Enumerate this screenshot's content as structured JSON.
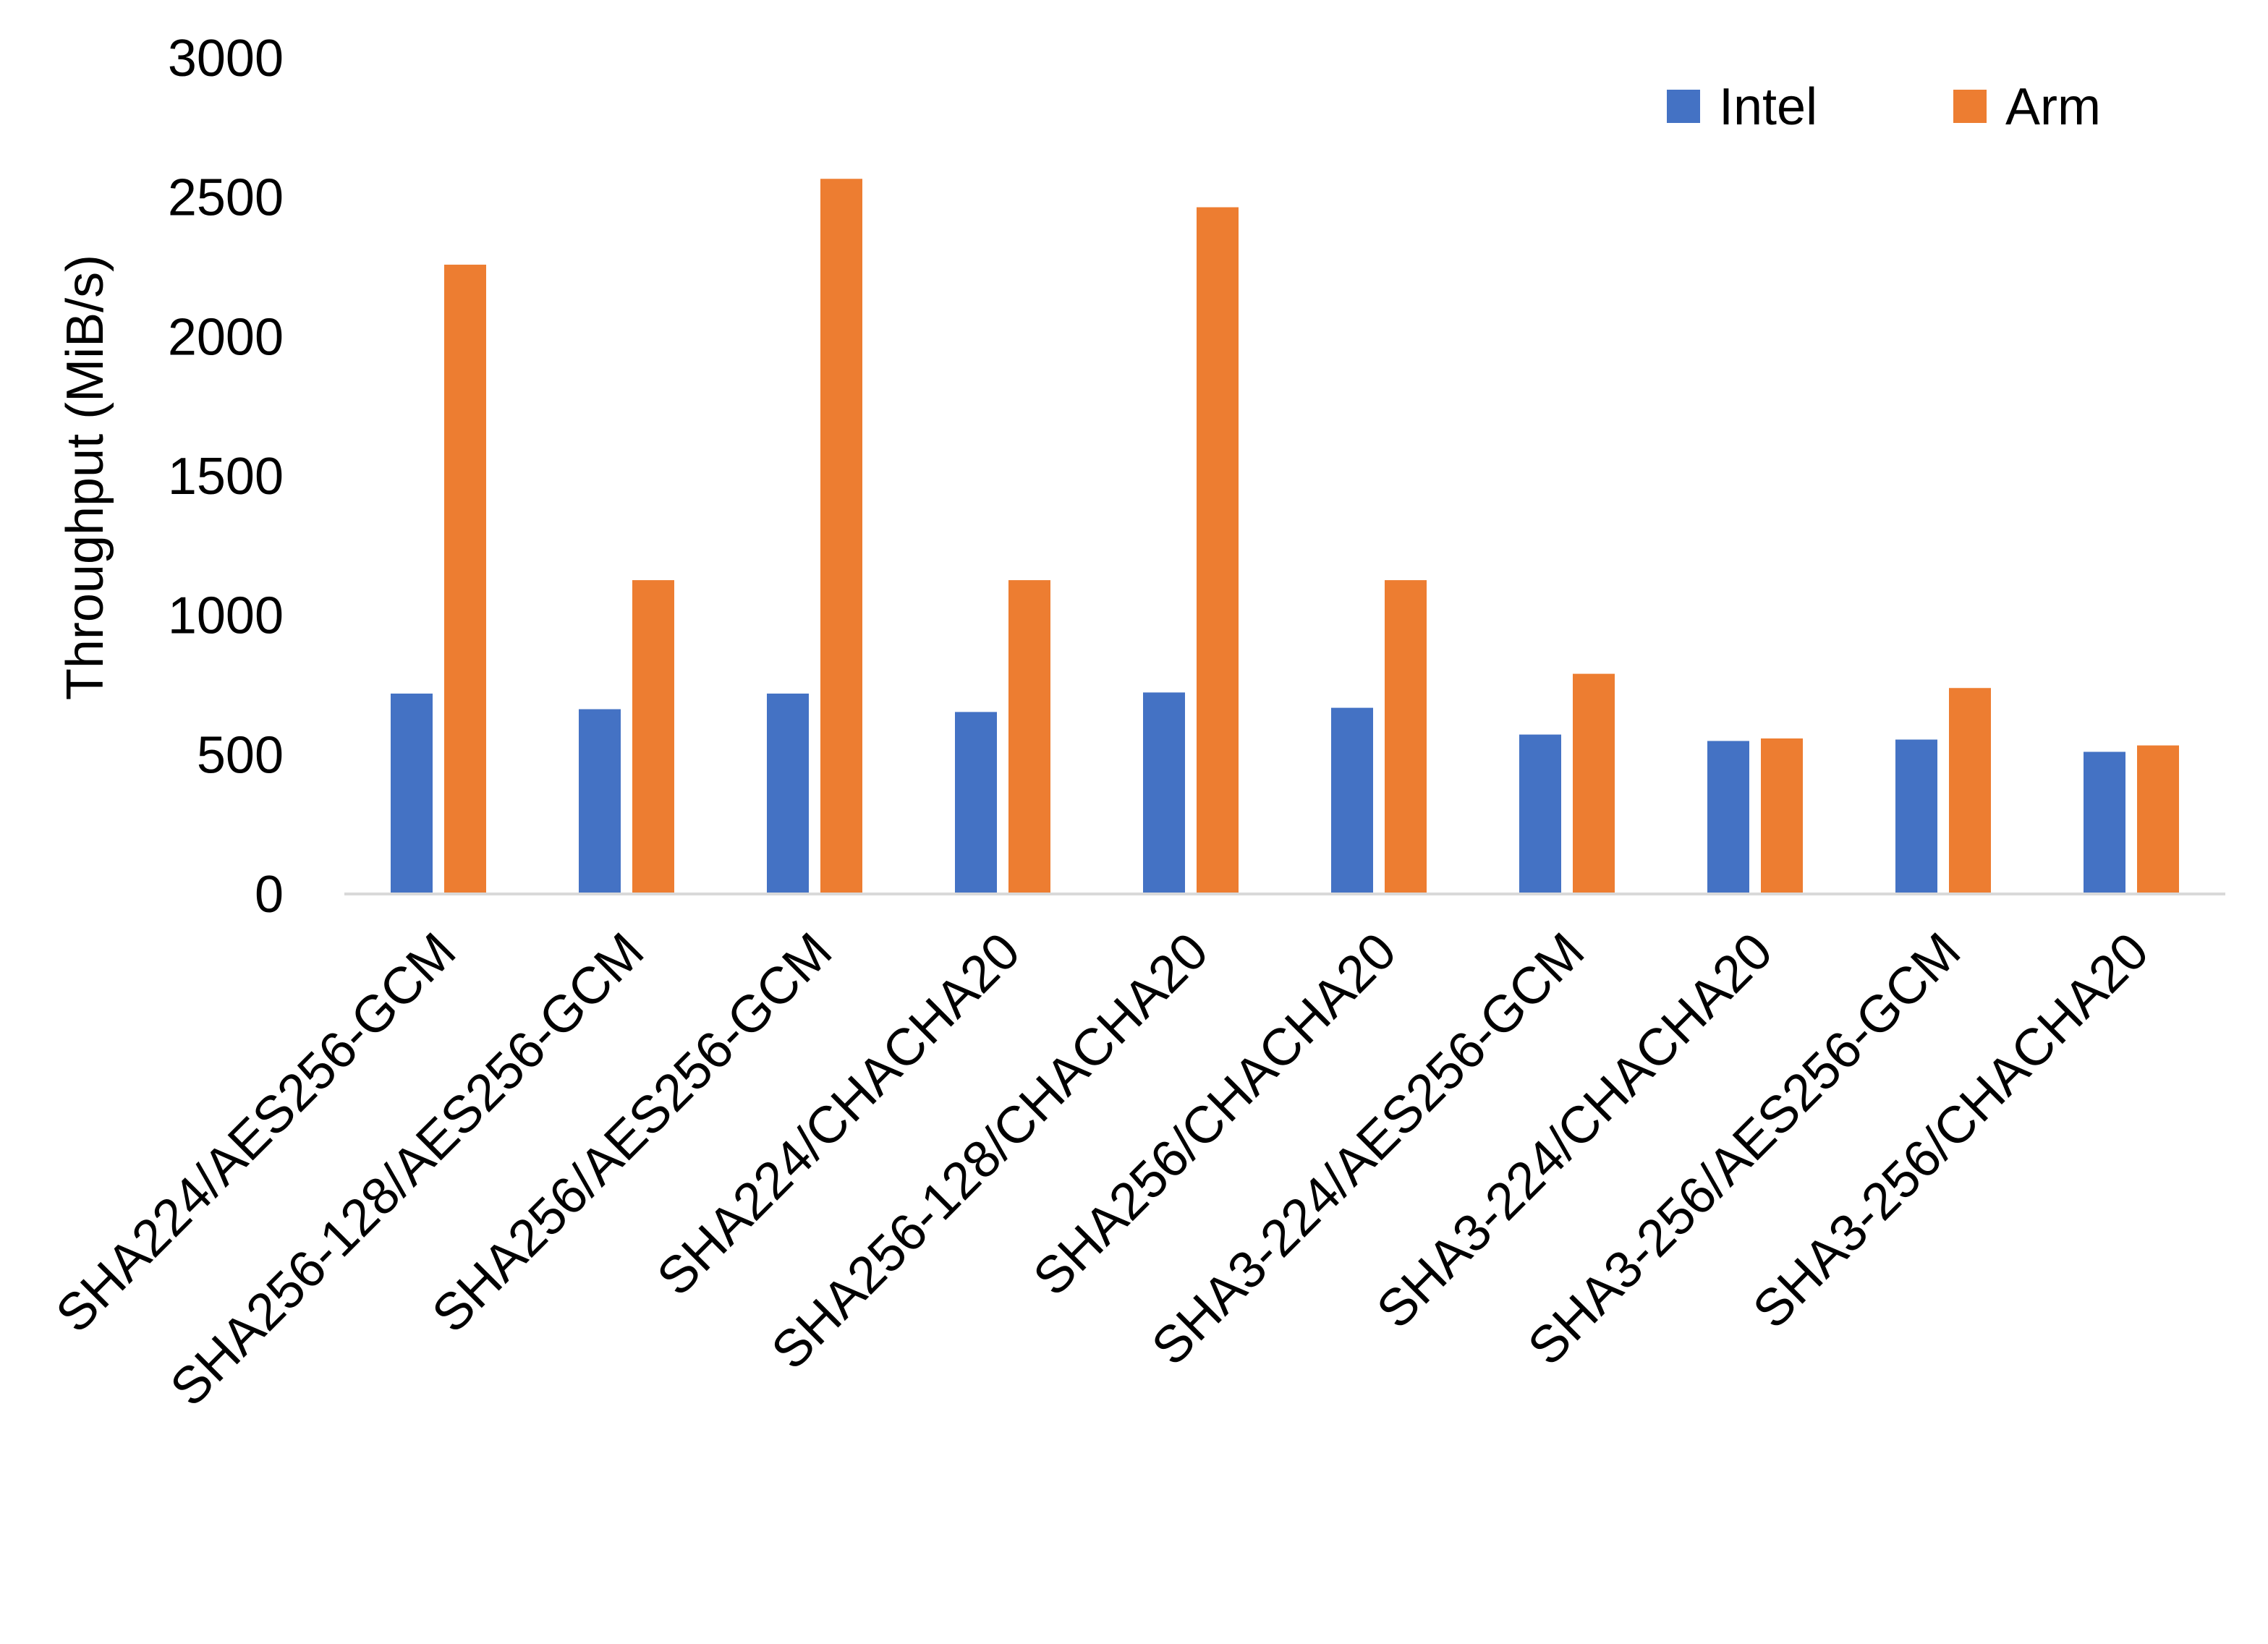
{
  "chart_data": {
    "type": "bar",
    "title": "",
    "xlabel": "",
    "ylabel": "Throughput (MiB/s)",
    "ylim": [
      0,
      3000
    ],
    "yticks": [
      "0",
      "500",
      "1000",
      "1500",
      "2000",
      "2500",
      "3000"
    ],
    "grid": false,
    "legend_position": "top-right",
    "categories": [
      "SHA224/AES256-GCM",
      "SHA256-128/AES256-GCM",
      "SHA256/AES256-GCM",
      "SHA224/CHACHA20",
      "SHA256-128/CHACHA20",
      "SHA256/CHACHA20",
      "SHA3-224/AES256-GCM",
      "SHA3-224/CHACHA20",
      "SHA3-256/AES256-GCM",
      "SHA3-256/CHACHA20"
    ],
    "series": [
      {
        "name": "Intel",
        "color": "#4472c4",
        "values": [
          719,
          663,
          719,
          653,
          723,
          668,
          572,
          549,
          554,
          510
        ]
      },
      {
        "name": "Arm",
        "color": "#ed7d31",
        "values": [
          2258,
          1126,
          2566,
          1126,
          2464,
          1126,
          790,
          558,
          739,
          533
        ]
      }
    ]
  }
}
